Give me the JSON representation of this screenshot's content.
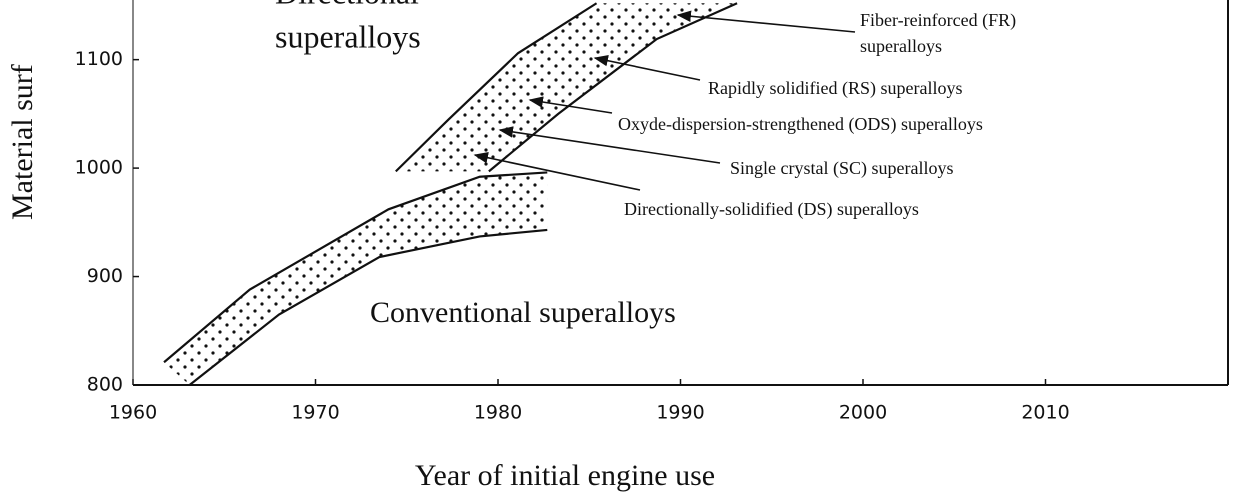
{
  "chart_data": {
    "type": "band",
    "x_label": "Year of initial engine use",
    "y_label": "Material surf",
    "xlim": [
      1960,
      2020
    ],
    "ylim": [
      800,
      1155
    ],
    "xticks": [
      1960,
      1970,
      1980,
      1990,
      2000,
      2010
    ],
    "yticks": [
      800,
      900,
      1000,
      1100
    ],
    "color": "#111111",
    "bands": [
      {
        "upper": {
          "x": [
            1961.7,
            1966.4,
            1974,
            1979,
            1982.7
          ],
          "y": [
            821,
            888,
            962,
            992,
            996
          ]
        },
        "lower": {
          "x": [
            1963.1,
            1968,
            1973.5,
            1979,
            1982.7
          ],
          "y": [
            800,
            865,
            918,
            937,
            943
          ]
        }
      },
      {
        "upper": {
          "x": [
            1974.4,
            1977.3,
            1981.1,
            1985.4
          ],
          "y": [
            997,
            1045,
            1106,
            1152
          ]
        },
        "lower": {
          "x": [
            1979.5,
            1983.3,
            1988.7,
            1993.1
          ],
          "y": [
            997,
            1050,
            1119,
            1152
          ]
        }
      }
    ],
    "annotations": [
      [
        "Directional",
        "superalloys"
      ],
      [
        "Conventional superalloys"
      ],
      [
        "Fiber-reinforced (FR)",
        "superalloys"
      ],
      [
        "Rapidly solidified (RS) superalloys"
      ],
      [
        "Oxyde-dispersion-strengthened (ODS) superalloys"
      ],
      [
        "Single crystal (SC) superalloys"
      ],
      [
        "Directionally-solidified (DS) superalloys"
      ]
    ]
  }
}
